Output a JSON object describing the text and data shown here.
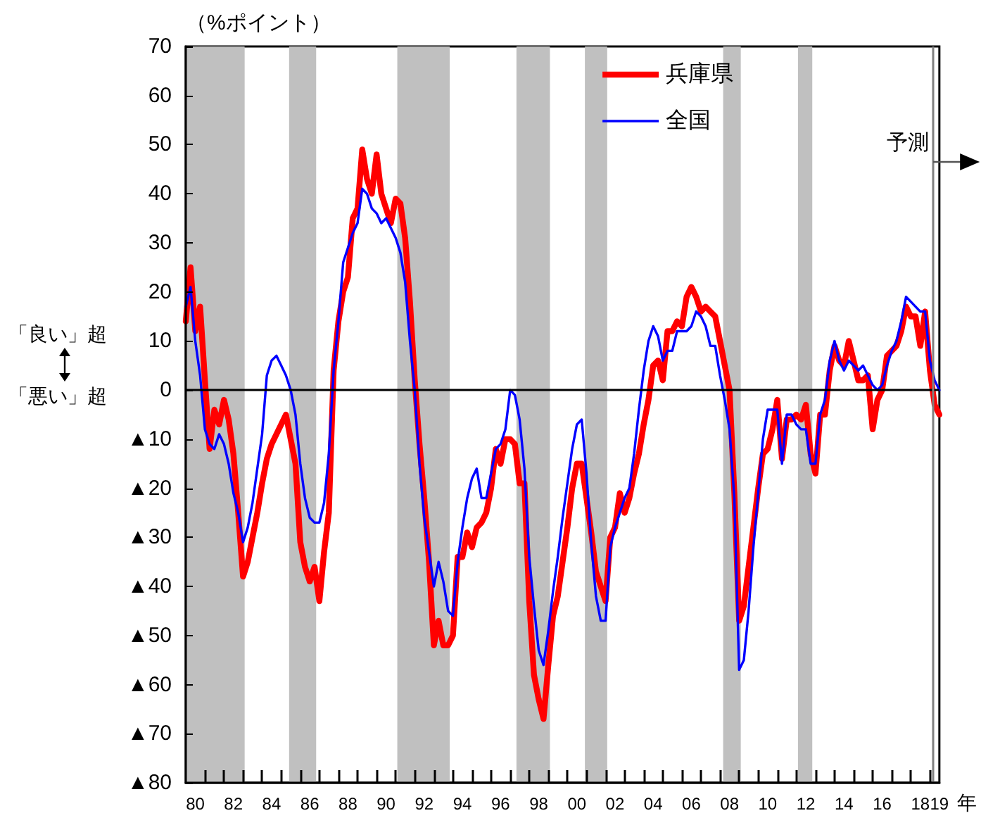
{
  "chart_data": {
    "type": "line",
    "ylabel": "（%ポイント）",
    "xlabel": "年",
    "annotations": [
      "「良い」超",
      "「悪い」超"
    ],
    "x": [
      "1980-01",
      "1980-04",
      "1980-07",
      "1980-10",
      "1981-01",
      "1981-04",
      "1981-07",
      "1981-10",
      "1982-01",
      "1982-04",
      "1982-07",
      "1982-10",
      "1983-01",
      "1983-04",
      "1983-07",
      "1983-10",
      "1984-01",
      "1984-04",
      "1984-07",
      "1984-10",
      "1985-01",
      "1985-04",
      "1985-07",
      "1985-10",
      "1986-01",
      "1986-04",
      "1986-07",
      "1986-10",
      "1987-01",
      "1987-04",
      "1987-07",
      "1987-10",
      "1988-01",
      "1988-04",
      "1988-07",
      "1988-10",
      "1989-01",
      "1989-04",
      "1989-07",
      "1989-10",
      "1990-01",
      "1990-04",
      "1990-07",
      "1990-10",
      "1991-01",
      "1991-04",
      "1991-07",
      "1991-10",
      "1992-01",
      "1992-04",
      "1992-07",
      "1992-10",
      "1993-01",
      "1993-04",
      "1993-07",
      "1993-10",
      "1994-01",
      "1994-04",
      "1994-07",
      "1994-10",
      "1995-01",
      "1995-04",
      "1995-07",
      "1995-10",
      "1996-01",
      "1996-04",
      "1996-07",
      "1996-10",
      "1997-01",
      "1997-04",
      "1997-07",
      "1997-10",
      "1998-01",
      "1998-04",
      "1998-07",
      "1998-10",
      "1999-01",
      "1999-04",
      "1999-07",
      "1999-10",
      "2000-01",
      "2000-04",
      "2000-07",
      "2000-10",
      "2001-01",
      "2001-04",
      "2001-07",
      "2001-10",
      "2002-01",
      "2002-04",
      "2002-07",
      "2002-10",
      "2003-01",
      "2003-04",
      "2003-07",
      "2003-10",
      "2004-01",
      "2004-04",
      "2004-07",
      "2004-10",
      "2005-01",
      "2005-04",
      "2005-07",
      "2005-10",
      "2006-01",
      "2006-04",
      "2006-07",
      "2006-10",
      "2007-01",
      "2007-04",
      "2007-07",
      "2007-10",
      "2008-01",
      "2008-04",
      "2008-07",
      "2008-10",
      "2009-01",
      "2009-04",
      "2009-07",
      "2009-10",
      "2010-01",
      "2010-04",
      "2010-07",
      "2010-10",
      "2011-01",
      "2011-04",
      "2011-07",
      "2011-10",
      "2012-01",
      "2012-04",
      "2012-07",
      "2012-10",
      "2013-01",
      "2013-04",
      "2013-07",
      "2013-10",
      "2014-01",
      "2014-04",
      "2014-07",
      "2014-10",
      "2015-01",
      "2015-04",
      "2015-07",
      "2015-10",
      "2016-01",
      "2016-04",
      "2016-07",
      "2016-10",
      "2017-01",
      "2017-04",
      "2017-07",
      "2017-10",
      "2018-01",
      "2018-04",
      "2018-07",
      "2018-10",
      "2019-01",
      "2019-04",
      "2019-07"
    ],
    "series": [
      {
        "name": "兵庫県",
        "color": "#ff0000",
        "values": [
          14,
          25,
          12,
          17,
          2,
          -12,
          -4,
          -7,
          -2,
          -6,
          -13,
          -25,
          -38,
          -35,
          -30,
          -25,
          -19,
          -14,
          -11,
          -9,
          -7,
          -5,
          -10,
          -15,
          -31,
          -36,
          -39,
          -36,
          -43,
          -33,
          -25,
          4,
          14,
          20,
          23,
          35,
          37,
          49,
          43,
          40,
          48,
          40,
          37,
          34,
          39,
          38,
          31,
          18,
          2,
          -11,
          -22,
          -35,
          -52,
          -47,
          -52,
          -52,
          -50,
          -34,
          -34,
          -29,
          -32,
          -28,
          -27,
          -25,
          -20,
          -12,
          -15,
          -10,
          -10,
          -11,
          -19,
          -19,
          -43,
          -58,
          -63,
          -67,
          -56,
          -46,
          -42,
          -35,
          -28,
          -20,
          -15,
          -15,
          -22,
          -29,
          -37,
          -40,
          -43,
          -30,
          -28,
          -21,
          -25,
          -22,
          -17,
          -13,
          -7,
          -2,
          5,
          6,
          2,
          12,
          12,
          14,
          13,
          19,
          21,
          19,
          16,
          17,
          16,
          15,
          10,
          5,
          0,
          -21,
          -47,
          -44,
          -36,
          -28,
          -20,
          -13,
          -12,
          -8,
          -2,
          -14,
          -6,
          -6,
          -5,
          -6,
          -3,
          -13,
          -17,
          -5,
          -5,
          4,
          9,
          6,
          5,
          10,
          6,
          2,
          2,
          3,
          -8,
          -2,
          0,
          7,
          8,
          9,
          12,
          17,
          15,
          15,
          9,
          16,
          4,
          -3,
          -5
        ]
      },
      {
        "name": "全国",
        "color": "#0000ff",
        "values": [
          17,
          21,
          10,
          3,
          -8,
          -11,
          -12,
          -9,
          -11,
          -15,
          -21,
          -25,
          -31,
          -28,
          -23,
          -16,
          -9,
          3,
          6,
          7,
          5,
          3,
          0,
          -5,
          -15,
          -22,
          -26,
          -27,
          -27,
          -23,
          -13,
          4,
          14,
          26,
          29,
          32,
          34,
          41,
          40,
          37,
          36,
          34,
          35,
          33,
          31,
          28,
          22,
          10,
          0,
          -15,
          -26,
          -33,
          -40,
          -35,
          -39,
          -45,
          -46,
          -35,
          -28,
          -22,
          -18,
          -16,
          -22,
          -22,
          -17,
          -12,
          -11,
          -8,
          0,
          -1,
          -6,
          -16,
          -34,
          -44,
          -53,
          -56,
          -49,
          -41,
          -34,
          -26,
          -19,
          -12,
          -7,
          -6,
          -17,
          -31,
          -42,
          -47,
          -47,
          -32,
          -28,
          -25,
          -22,
          -20,
          -13,
          -4,
          4,
          10,
          13,
          11,
          6,
          8,
          8,
          12,
          12,
          12,
          13,
          16,
          15,
          13,
          9,
          9,
          3,
          -2,
          -8,
          -22,
          -57,
          -55,
          -45,
          -32,
          -21,
          -10,
          -4,
          -4,
          -4,
          -15,
          -5,
          -5,
          -7,
          -8,
          -8,
          -15,
          -15,
          -5,
          -2,
          6,
          10,
          6,
          4,
          6,
          5,
          4,
          5,
          3,
          1,
          0,
          1,
          5,
          8,
          10,
          14,
          19,
          18,
          17,
          16,
          16,
          6,
          2,
          0
        ]
      }
    ],
    "xlim": [
      "1980-01",
      "2019-07"
    ],
    "xticks": [
      {
        "value": "1980-07",
        "label": "80"
      },
      {
        "value": "1982-07",
        "label": "82"
      },
      {
        "value": "1984-07",
        "label": "84"
      },
      {
        "value": "1986-07",
        "label": "86"
      },
      {
        "value": "1988-07",
        "label": "88"
      },
      {
        "value": "1990-07",
        "label": "90"
      },
      {
        "value": "1992-07",
        "label": "92"
      },
      {
        "value": "1994-07",
        "label": "94"
      },
      {
        "value": "1996-07",
        "label": "96"
      },
      {
        "value": "1998-07",
        "label": "98"
      },
      {
        "value": "2000-07",
        "label": "00"
      },
      {
        "value": "2002-07",
        "label": "02"
      },
      {
        "value": "2004-07",
        "label": "04"
      },
      {
        "value": "2006-07",
        "label": "06"
      },
      {
        "value": "2008-07",
        "label": "08"
      },
      {
        "value": "2010-07",
        "label": "10"
      },
      {
        "value": "2012-07",
        "label": "12"
      },
      {
        "value": "2014-07",
        "label": "14"
      },
      {
        "value": "2016-07",
        "label": "16"
      },
      {
        "value": "2018-07",
        "label": "18"
      },
      {
        "value": "2019-07",
        "label": "19"
      },
      {
        "value": "1981-01",
        "label": null
      },
      {
        "value": "1982-01",
        "label": null
      },
      {
        "value": "1983-01",
        "label": null
      },
      {
        "value": "1984-01",
        "label": null
      },
      {
        "value": "1985-01",
        "label": null
      },
      {
        "value": "1986-01",
        "label": null
      },
      {
        "value": "1987-01",
        "label": null
      },
      {
        "value": "1988-01",
        "label": null
      },
      {
        "value": "1989-01",
        "label": null
      },
      {
        "value": "1990-01",
        "label": null
      },
      {
        "value": "1991-01",
        "label": null
      },
      {
        "value": "1992-01",
        "label": null
      },
      {
        "value": "1993-01",
        "label": null
      },
      {
        "value": "1994-01",
        "label": null
      },
      {
        "value": "1995-01",
        "label": null
      },
      {
        "value": "1996-01",
        "label": null
      },
      {
        "value": "1997-01",
        "label": null
      },
      {
        "value": "1998-01",
        "label": null
      },
      {
        "value": "1999-01",
        "label": null
      },
      {
        "value": "2000-01",
        "label": null
      },
      {
        "value": "2001-01",
        "label": null
      },
      {
        "value": "2002-01",
        "label": null
      },
      {
        "value": "2003-01",
        "label": null
      },
      {
        "value": "2004-01",
        "label": null
      },
      {
        "value": "2005-01",
        "label": null
      },
      {
        "value": "2006-01",
        "label": null
      },
      {
        "value": "2007-01",
        "label": null
      },
      {
        "value": "2008-01",
        "label": null
      },
      {
        "value": "2009-01",
        "label": null
      },
      {
        "value": "2010-01",
        "label": null
      },
      {
        "value": "2011-01",
        "label": null
      },
      {
        "value": "2012-01",
        "label": null
      },
      {
        "value": "2013-01",
        "label": null
      },
      {
        "value": "2014-01",
        "label": null
      },
      {
        "value": "2015-01",
        "label": null
      },
      {
        "value": "2016-01",
        "label": null
      },
      {
        "value": "2017-01",
        "label": null
      },
      {
        "value": "2018-01",
        "label": null
      },
      {
        "value": "2019-01",
        "label": null
      }
    ],
    "ylim": [
      -80,
      70
    ],
    "yticks": [
      70,
      60,
      50,
      40,
      30,
      20,
      10,
      0,
      {
        "value": -10,
        "label": "▲10"
      },
      {
        "value": -20,
        "label": "▲20"
      },
      {
        "value": -30,
        "label": "▲30"
      },
      {
        "value": -40,
        "label": "▲40"
      },
      {
        "value": -50,
        "label": "▲50"
      },
      {
        "value": -60,
        "label": "▲60"
      },
      {
        "value": -70,
        "label": "▲70"
      },
      {
        "value": -80,
        "label": "▲80"
      }
    ],
    "bands": [
      {
        "axis": "x",
        "from": "1980-01",
        "to": "1983-02",
        "color": "#c0c0c0"
      },
      {
        "axis": "x",
        "from": "1985-06",
        "to": "1986-11",
        "color": "#c0c0c0"
      },
      {
        "axis": "x",
        "from": "1991-02",
        "to": "1993-11",
        "color": "#c0c0c0"
      },
      {
        "axis": "x",
        "from": "1997-05",
        "to": "1999-02",
        "color": "#c0c0c0"
      },
      {
        "axis": "x",
        "from": "2000-12",
        "to": "2002-02",
        "color": "#c0c0c0"
      },
      {
        "axis": "x",
        "from": "2008-03",
        "to": "2009-02",
        "color": "#c0c0c0"
      },
      {
        "axis": "x",
        "from": "2012-02",
        "to": "2012-11",
        "color": "#c0c0c0"
      }
    ],
    "ref_lines": [
      {
        "axis": "y",
        "value": 0,
        "color": "#000000"
      },
      {
        "axis": "x",
        "value": "2019-03",
        "label": "予測",
        "color": "#808080"
      }
    ],
    "legend": "top",
    "grid": false,
    "marker": "none",
    "line_style": "solid"
  }
}
